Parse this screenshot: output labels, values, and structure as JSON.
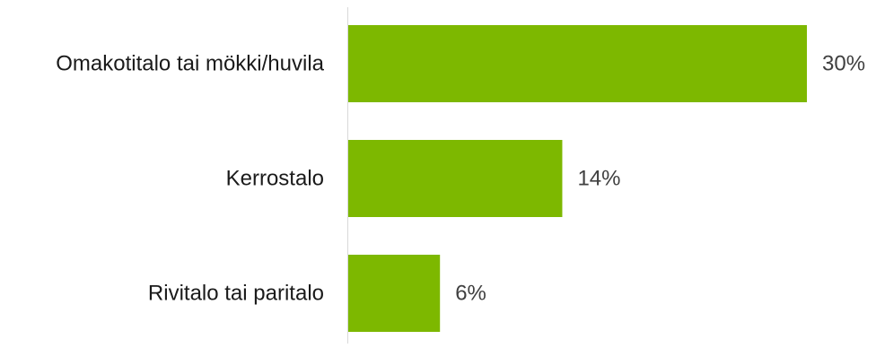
{
  "chart_data": {
    "type": "bar",
    "orientation": "horizontal",
    "categories": [
      "Omakotitalo tai mökki/huvila",
      "Kerrostalo",
      "Rivitalo tai paritalo"
    ],
    "values": [
      30,
      14,
      6
    ],
    "value_labels": [
      "30%",
      "14%",
      "6%"
    ],
    "unit": "%",
    "title": "",
    "xlabel": "",
    "ylabel": "",
    "xlim": [
      0,
      30
    ],
    "grid": false,
    "legend": "none",
    "bar_color": "#7db800",
    "axis_color": "#d9d9d9"
  }
}
